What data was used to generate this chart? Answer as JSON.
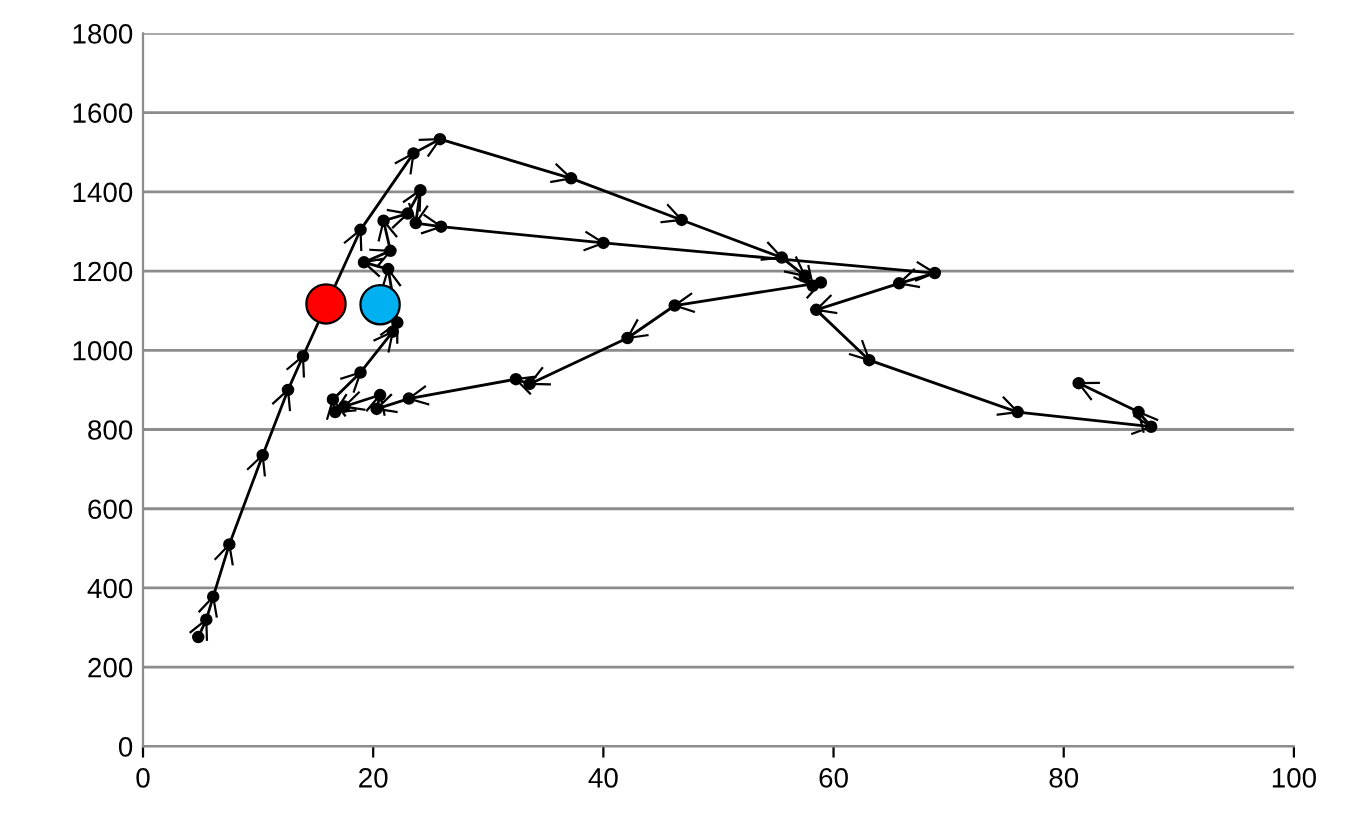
{
  "chart_data": {
    "type": "line",
    "xlim": [
      0,
      100
    ],
    "xticks": [
      0,
      20,
      40,
      60,
      80,
      100
    ],
    "ylim": [
      0,
      1800
    ],
    "yticks": [
      0,
      200,
      400,
      600,
      800,
      1000,
      1200,
      1400,
      1600,
      1800
    ],
    "grid": "y",
    "marker": "circle",
    "line_style": "solid",
    "series": [
      {
        "color": "#000000",
        "x": [
          4.8,
          5.5,
          6.1,
          7.5,
          10.4,
          12.6,
          13.9,
          18.9,
          23.5,
          25.8,
          37.2,
          46.8,
          55.5,
          57.5,
          58.2,
          58.9,
          46.2,
          42.1,
          33.6,
          32.4,
          23.1,
          20.3,
          20.6,
          17.5,
          16.7,
          16.5,
          18.9,
          21.7,
          22.1,
          21.3,
          19.2,
          21.5,
          20.9,
          23.0,
          24.1,
          23.7,
          25.9,
          40.0,
          68.8,
          65.7,
          58.5,
          63.1,
          76.0,
          87.6,
          86.5,
          81.3
        ],
        "values": [
          276,
          320,
          378,
          510,
          735,
          900,
          985,
          1304,
          1497,
          1533,
          1434,
          1329,
          1234,
          1188,
          1163,
          1171,
          1113,
          1031,
          915,
          927,
          878,
          852,
          887,
          858,
          844,
          876,
          944,
          1047,
          1070,
          1205,
          1222,
          1251,
          1327,
          1345,
          1404,
          1321,
          1312,
          1271,
          1195,
          1169,
          1102,
          975,
          844,
          807,
          844,
          917
        ]
      },
      {
        "type": "scatter",
        "color": "#ff0000",
        "x": [
          15.9
        ],
        "values": [
          1117
        ]
      },
      {
        "type": "scatter",
        "color": "#00b0f0",
        "x": [
          20.6
        ],
        "values": [
          1115
        ]
      }
    ]
  }
}
